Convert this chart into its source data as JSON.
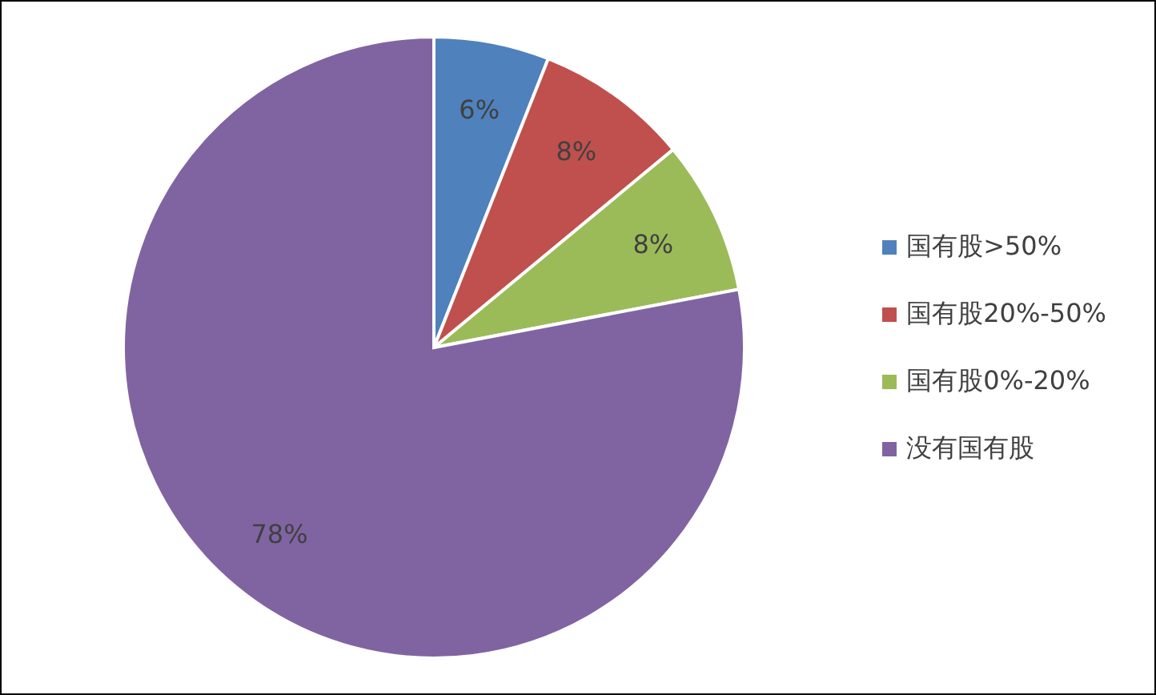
{
  "chart_data": {
    "type": "pie",
    "categories": [
      "国有股>50%",
      "国有股20%-50%",
      "国有股0%-20%",
      "没有国有股"
    ],
    "values": [
      6,
      8,
      8,
      78
    ],
    "colors": [
      "#4f81bd",
      "#c0504d",
      "#9bbb59",
      "#8064a2"
    ],
    "value_labels": [
      "6%",
      "8%",
      "8%",
      "78%"
    ],
    "legend": "right"
  }
}
